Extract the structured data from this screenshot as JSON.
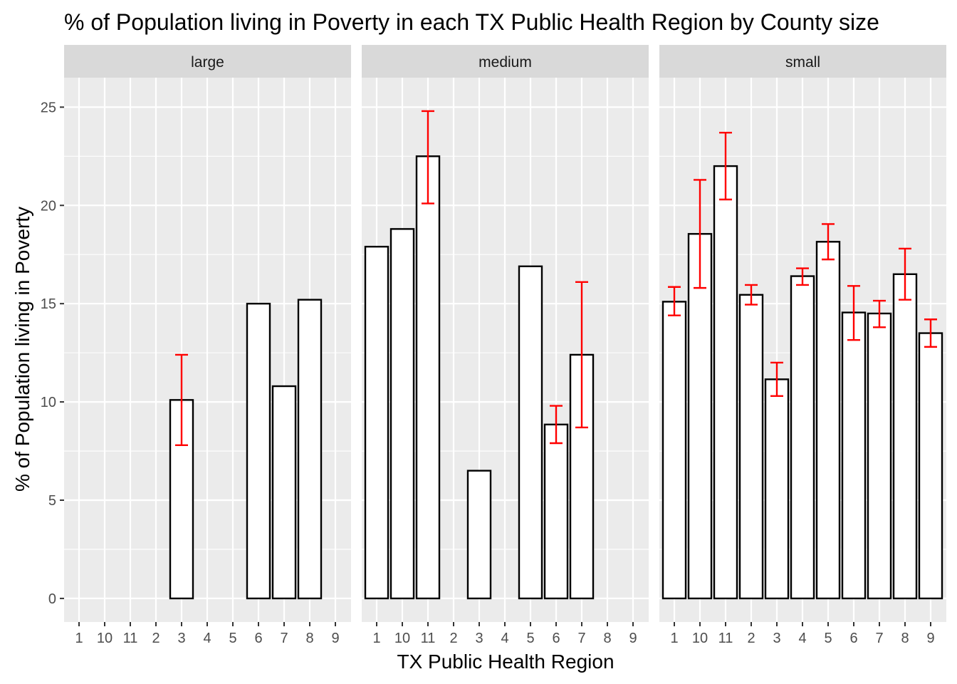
{
  "chart_data": {
    "type": "bar",
    "title": "% of Population living in Poverty in each TX Public Health Region by County size",
    "xlabel": "TX Public Health Region",
    "ylabel": "% of Population living in Poverty",
    "categories": [
      "1",
      "10",
      "11",
      "2",
      "3",
      "4",
      "5",
      "6",
      "7",
      "8",
      "9"
    ],
    "ylim": [
      -1.2,
      26.5
    ],
    "yticks": [
      0,
      5,
      10,
      15,
      20,
      25
    ],
    "grid": true,
    "bar_fill": "#ffffff",
    "bar_outline": "#000000",
    "errorbar_color": "#ff0000",
    "panel_background": "#ebebeb",
    "strip_background": "#d9d9d9",
    "facets": [
      {
        "label": "large",
        "bars": [
          {
            "category": "3",
            "value": 10.1,
            "low": 7.8,
            "high": 12.4
          },
          {
            "category": "6",
            "value": 15.0
          },
          {
            "category": "7",
            "value": 10.8
          },
          {
            "category": "8",
            "value": 15.2
          }
        ]
      },
      {
        "label": "medium",
        "bars": [
          {
            "category": "1",
            "value": 17.9
          },
          {
            "category": "10",
            "value": 18.8
          },
          {
            "category": "11",
            "value": 22.5,
            "low": 20.1,
            "high": 24.8
          },
          {
            "category": "3",
            "value": 6.5
          },
          {
            "category": "5",
            "value": 16.9
          },
          {
            "category": "6",
            "value": 8.85,
            "low": 7.9,
            "high": 9.8
          },
          {
            "category": "7",
            "value": 12.4,
            "low": 8.7,
            "high": 16.1
          }
        ]
      },
      {
        "label": "small",
        "bars": [
          {
            "category": "1",
            "value": 15.1,
            "low": 14.4,
            "high": 15.85
          },
          {
            "category": "10",
            "value": 18.55,
            "low": 15.8,
            "high": 21.3
          },
          {
            "category": "11",
            "value": 22.0,
            "low": 20.3,
            "high": 23.7
          },
          {
            "category": "2",
            "value": 15.45,
            "low": 14.95,
            "high": 15.95
          },
          {
            "category": "3",
            "value": 11.15,
            "low": 10.3,
            "high": 12.0
          },
          {
            "category": "4",
            "value": 16.4,
            "low": 15.95,
            "high": 16.8
          },
          {
            "category": "5",
            "value": 18.15,
            "low": 17.25,
            "high": 19.05
          },
          {
            "category": "6",
            "value": 14.55,
            "low": 13.15,
            "high": 15.9
          },
          {
            "category": "7",
            "value": 14.5,
            "low": 13.8,
            "high": 15.15
          },
          {
            "category": "8",
            "value": 16.5,
            "low": 15.2,
            "high": 17.8
          },
          {
            "category": "9",
            "value": 13.5,
            "low": 12.8,
            "high": 14.2
          }
        ]
      }
    ]
  }
}
